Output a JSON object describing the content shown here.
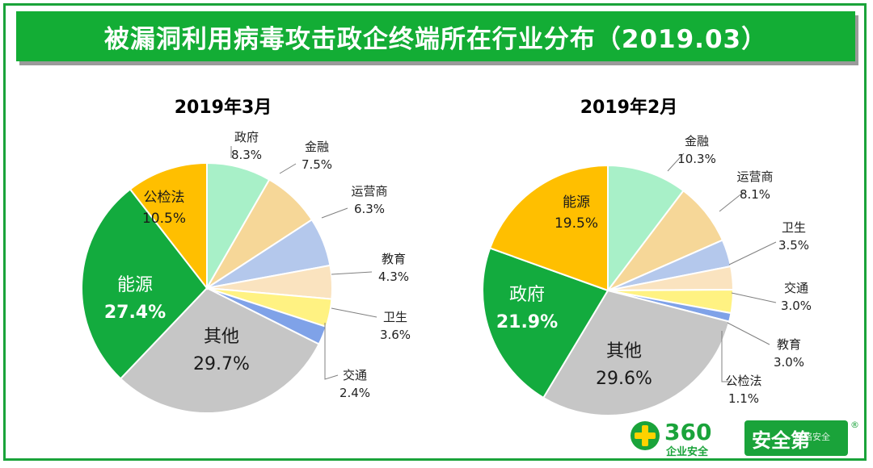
{
  "page": {
    "title": "被漏洞利用病毒攻击政企终端所在行业分布（2019.03）"
  },
  "logo": {
    "number": "360",
    "sub": "企业安全",
    "badge": "安全第",
    "watermark": "网络安全",
    "registered": "®"
  },
  "chart_data": [
    {
      "type": "pie",
      "title": "2019年3月",
      "slices": [
        {
          "label": "政府",
          "value": 8.3,
          "value_label": "8.3%",
          "color": "#a8f0c8"
        },
        {
          "label": "金融",
          "value": 7.5,
          "value_label": "7.5%",
          "color": "#f6d798"
        },
        {
          "label": "运营商",
          "value": 6.3,
          "value_label": "6.3%",
          "color": "#b4c8ec"
        },
        {
          "label": "教育",
          "value": 4.3,
          "value_label": "4.3%",
          "color": "#fae3bf"
        },
        {
          "label": "卫生",
          "value": 3.6,
          "value_label": "3.6%",
          "color": "#fff282"
        },
        {
          "label": "交通",
          "value": 2.4,
          "value_label": "2.4%",
          "color": "#7fa2e8"
        },
        {
          "label": "其他",
          "value": 29.7,
          "value_label": "29.7%",
          "color": "#c6c6c6"
        },
        {
          "label": "能源",
          "value": 27.4,
          "value_label": "27.4%",
          "color": "#13ab3e"
        },
        {
          "label": "公检法",
          "value": 10.5,
          "value_label": "10.5%",
          "color": "#ffbf00"
        }
      ]
    },
    {
      "type": "pie",
      "title": "2019年2月",
      "slices": [
        {
          "label": "金融",
          "value": 10.3,
          "value_label": "10.3%",
          "color": "#a8f0c8"
        },
        {
          "label": "运营商",
          "value": 8.1,
          "value_label": "8.1%",
          "color": "#f6d798"
        },
        {
          "label": "卫生",
          "value": 3.5,
          "value_label": "3.5%",
          "color": "#b4c8ec"
        },
        {
          "label": "交通",
          "value": 3.0,
          "value_label": "3.0%",
          "color": "#fae3bf"
        },
        {
          "label": "教育",
          "value": 3.0,
          "value_label": "3.0%",
          "color": "#fff282"
        },
        {
          "label": "公检法",
          "value": 1.1,
          "value_label": "1.1%",
          "color": "#7fa2e8"
        },
        {
          "label": "其他",
          "value": 29.6,
          "value_label": "29.6%",
          "color": "#c6c6c6"
        },
        {
          "label": "政府",
          "value": 21.9,
          "value_label": "21.9%",
          "color": "#13ab3e"
        },
        {
          "label": "能源",
          "value": 19.5,
          "value_label": "19.5%",
          "color": "#ffbf00"
        }
      ]
    }
  ]
}
